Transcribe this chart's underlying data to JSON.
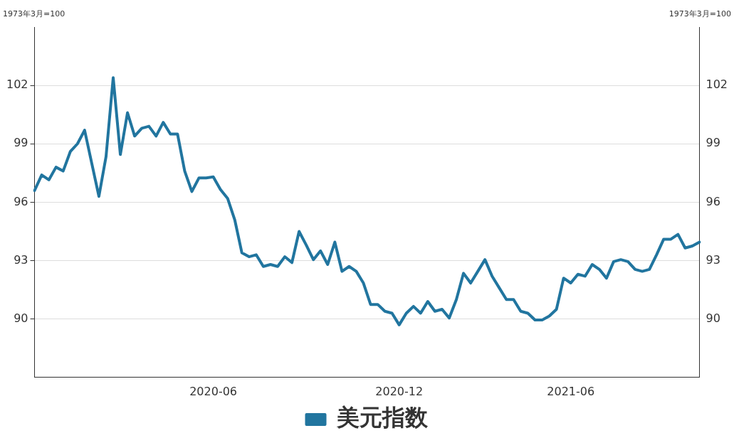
{
  "chart_data": {
    "type": "line",
    "ylabel": "1973年3月=100",
    "y2label": "1973年3月=100",
    "categories": [
      null,
      null,
      null,
      null,
      null,
      null,
      null,
      null,
      null,
      null,
      null,
      null,
      null,
      null,
      null,
      null,
      null,
      null,
      null,
      null,
      null,
      null,
      null,
      null,
      null,
      "2020-06",
      null,
      null,
      null,
      null,
      null,
      null,
      null,
      null,
      null,
      null,
      null,
      null,
      null,
      null,
      null,
      null,
      null,
      null,
      null,
      null,
      null,
      null,
      null,
      null,
      null,
      "2020-12",
      null,
      null,
      null,
      null,
      null,
      null,
      null,
      null,
      null,
      null,
      null,
      null,
      null,
      null,
      null,
      null,
      null,
      null,
      null,
      null,
      null,
      null,
      null,
      "2021-06",
      null,
      null,
      null,
      null,
      null,
      null,
      null,
      null,
      null,
      null,
      null,
      null,
      null,
      null,
      null,
      null,
      null,
      null
    ],
    "series": [
      {
        "name": "美元指数",
        "color": "#21759f",
        "values": [
          96.6,
          97.4,
          97.15,
          97.8,
          97.6,
          98.6,
          99.0,
          99.7,
          98.0,
          96.3,
          98.35,
          102.4,
          98.45,
          100.6,
          99.4,
          99.8,
          99.9,
          99.4,
          100.1,
          99.5,
          99.5,
          97.6,
          96.55,
          97.25,
          97.25,
          97.3,
          96.65,
          96.2,
          95.1,
          93.4,
          93.2,
          93.3,
          92.7,
          92.8,
          92.7,
          93.2,
          92.9,
          94.5,
          93.8,
          93.05,
          93.5,
          92.8,
          93.95,
          92.45,
          92.7,
          92.45,
          91.85,
          90.75,
          90.75,
          90.4,
          90.3,
          89.7,
          90.3,
          90.65,
          90.3,
          90.9,
          90.4,
          90.5,
          90.05,
          91.0,
          92.35,
          91.85,
          92.45,
          93.05,
          92.2,
          91.6,
          91.0,
          91.0,
          90.4,
          90.3,
          89.95,
          89.95,
          90.15,
          90.5,
          92.1,
          91.85,
          92.3,
          92.2,
          92.8,
          92.55,
          92.1,
          92.95,
          93.05,
          92.95,
          92.55,
          92.45,
          92.55,
          93.3,
          94.1,
          94.1,
          94.35,
          93.65,
          93.75,
          93.95
        ]
      }
    ],
    "ylim": [
      87,
      105
    ],
    "yticks": [
      90,
      93,
      96,
      99,
      102
    ],
    "y2lim": [
      87,
      105
    ],
    "y2ticks": [
      90,
      93,
      96,
      99,
      102
    ],
    "grid": "y",
    "legend": "bottom",
    "marker": "none",
    "line_style": "solid"
  }
}
